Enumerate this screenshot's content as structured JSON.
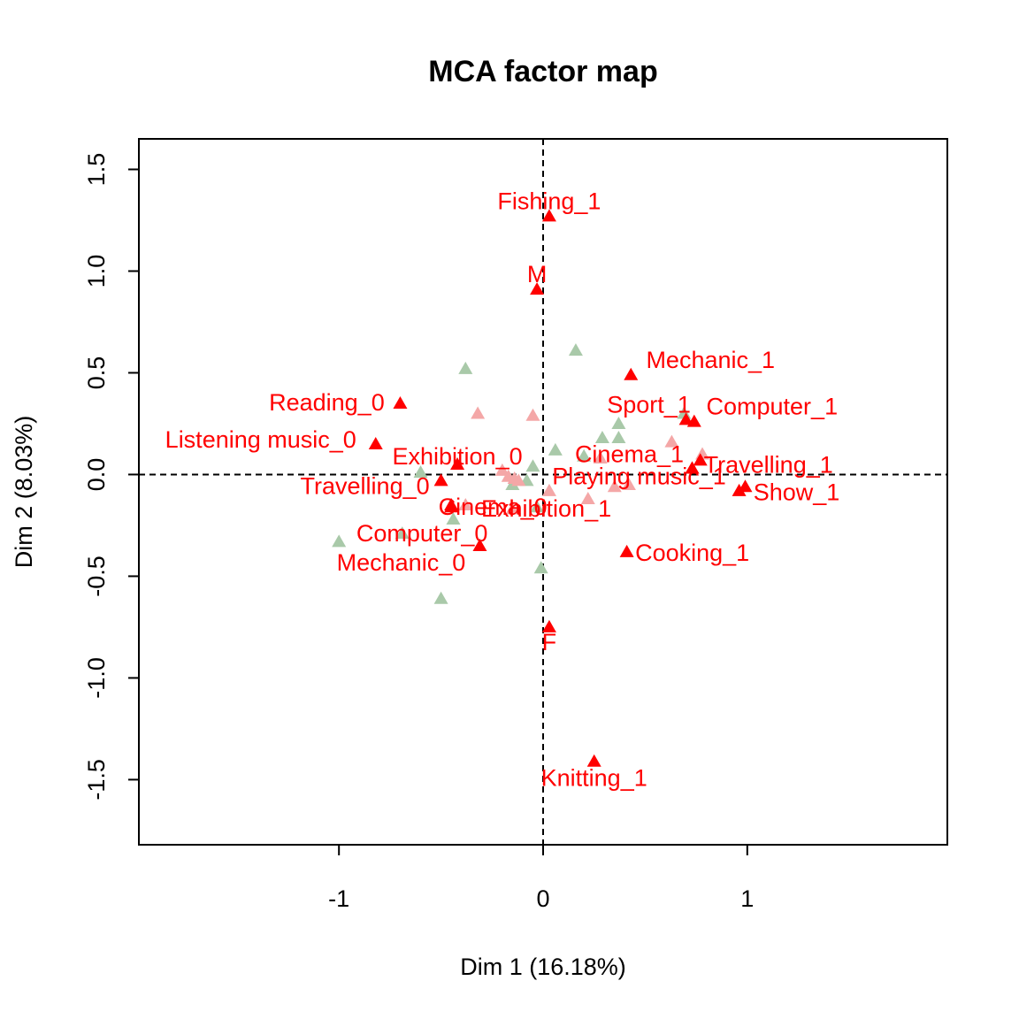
{
  "chart_data": {
    "type": "scatter",
    "title": "MCA factor map",
    "xlabel": "Dim 1 (16.18%)",
    "ylabel": "Dim 2 (8.03%)",
    "xlim": [
      -1.98,
      1.98
    ],
    "ylim": [
      -1.82,
      1.65
    ],
    "x_ticks": [
      -1,
      0,
      1
    ],
    "x_tick_labels": [
      "-1",
      "0",
      "1"
    ],
    "y_ticks": [
      -1.5,
      -1.0,
      -0.5,
      0.0,
      0.5,
      1.0,
      1.5
    ],
    "y_tick_labels": [
      "-1.5",
      "-1.0",
      "-0.5",
      "0.0",
      "0.5",
      "1.0",
      "1.5"
    ],
    "reference_lines": {
      "x": 0,
      "y": 0,
      "style": "dashed"
    },
    "grid": false,
    "marker": "triangle",
    "colors": {
      "active": "#ff0000",
      "active_faint": "#f4a7a7",
      "supplementary": "#a9c9a9",
      "dark": "#8b0000"
    },
    "series": [
      {
        "role": "labeled active categories",
        "color": "#ff0000",
        "points": [
          {
            "label": "Fishing_1",
            "x": 0.03,
            "y": 1.27
          },
          {
            "label": "M",
            "x": -0.03,
            "y": 0.91
          },
          {
            "label": "Mechanic_1",
            "x": 0.43,
            "y": 0.49
          },
          {
            "label": "Reading_0",
            "x": -0.7,
            "y": 0.35
          },
          {
            "label": "Sport_1",
            "x": 0.7,
            "y": 0.27
          },
          {
            "label": "Computer_1",
            "x": 0.74,
            "y": 0.26
          },
          {
            "label": "Listening music_0",
            "x": -0.82,
            "y": 0.15
          },
          {
            "label": "Exhibition_0",
            "x": -0.42,
            "y": 0.05
          },
          {
            "label": "Travelling_1",
            "x": 0.77,
            "y": 0.07
          },
          {
            "label": "Cinema_1",
            "x": 0.73,
            "y": 0.03
          },
          {
            "label": "Playing music_1",
            "x": 0.73,
            "y": 0.03
          },
          {
            "label": "Travelling_0",
            "x": -0.5,
            "y": -0.03
          },
          {
            "label": "Show_1",
            "x": 0.99,
            "y": -0.06
          },
          {
            "label": "Cinema_0",
            "x": -0.45,
            "y": -0.15
          },
          {
            "label": "Exhibition_1",
            "x": 0.96,
            "y": -0.08
          },
          {
            "label": "Computer_0",
            "x": -0.45,
            "y": -0.16
          },
          {
            "label": "Cooking_1",
            "x": 0.41,
            "y": -0.38
          },
          {
            "label": "Mechanic_0",
            "x": -0.31,
            "y": -0.35
          },
          {
            "label": "F",
            "x": 0.03,
            "y": -0.75
          },
          {
            "label": "Knitting_1",
            "x": 0.25,
            "y": -1.41
          }
        ]
      },
      {
        "role": "faint active categories",
        "color": "#f4a7a7",
        "points": [
          {
            "x": -0.32,
            "y": 0.3
          },
          {
            "x": -0.05,
            "y": 0.29
          },
          {
            "x": 0.63,
            "y": 0.16
          },
          {
            "x": 0.78,
            "y": 0.1
          },
          {
            "x": -0.2,
            "y": 0.02
          },
          {
            "x": -0.17,
            "y": -0.01
          },
          {
            "x": -0.14,
            "y": -0.02
          },
          {
            "x": -0.12,
            "y": -0.03
          },
          {
            "x": -0.15,
            "y": -0.17
          },
          {
            "x": 0.03,
            "y": -0.08
          },
          {
            "x": 0.28,
            "y": 0.08
          },
          {
            "x": 0.35,
            "y": -0.06
          },
          {
            "x": 0.42,
            "y": -0.05
          },
          {
            "x": -0.38,
            "y": -0.15
          },
          {
            "x": 0.22,
            "y": -0.12
          }
        ]
      },
      {
        "role": "supplementary categories",
        "color": "#a9c9a9",
        "points": [
          {
            "x": -0.38,
            "y": 0.52
          },
          {
            "x": 0.16,
            "y": 0.61
          },
          {
            "x": 0.37,
            "y": 0.25
          },
          {
            "x": 0.29,
            "y": 0.18
          },
          {
            "x": 0.37,
            "y": 0.18
          },
          {
            "x": 0.06,
            "y": 0.12
          },
          {
            "x": 0.2,
            "y": 0.09
          },
          {
            "x": -0.6,
            "y": 0.01
          },
          {
            "x": -0.05,
            "y": 0.04
          },
          {
            "x": -0.08,
            "y": -0.03
          },
          {
            "x": -0.15,
            "y": -0.05
          },
          {
            "x": -0.03,
            "y": -0.16
          },
          {
            "x": -0.44,
            "y": -0.22
          },
          {
            "x": -0.69,
            "y": -0.29
          },
          {
            "x": -1.0,
            "y": -0.33
          },
          {
            "x": -0.01,
            "y": -0.46
          },
          {
            "x": -0.5,
            "y": -0.61
          },
          {
            "x": 0.69,
            "y": 0.3
          }
        ]
      }
    ]
  }
}
